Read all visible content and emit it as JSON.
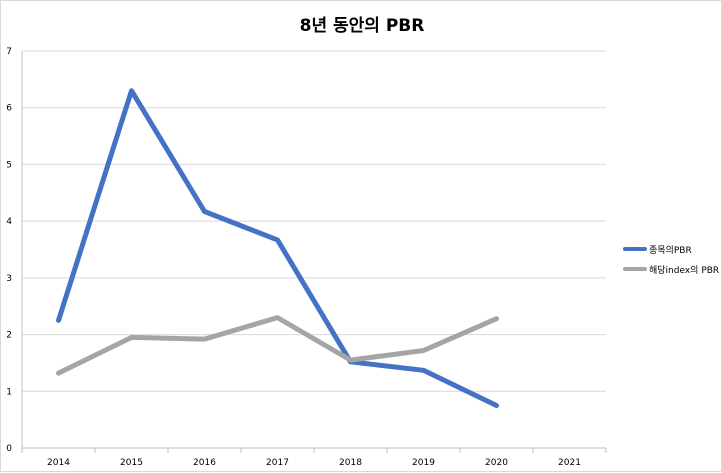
{
  "chart_data": {
    "type": "line",
    "title": "8년 동안의 PBR",
    "categories": [
      "2014",
      "2015",
      "2016",
      "2017",
      "2018",
      "2019",
      "2020",
      "2021"
    ],
    "ylim": [
      0,
      7
    ],
    "yticks": [
      0,
      1,
      2,
      3,
      4,
      5,
      6,
      7
    ],
    "grid": true,
    "legend_position": "right",
    "series": [
      {
        "name": "종목의PBR",
        "color": "#4472C4",
        "values": [
          2.25,
          6.3,
          4.17,
          3.67,
          1.52,
          1.37,
          0.75,
          null
        ]
      },
      {
        "name": "해당index의 PBR",
        "color": "#A5A5A5",
        "values": [
          1.32,
          1.95,
          1.92,
          2.3,
          1.55,
          1.72,
          2.28,
          null
        ]
      }
    ]
  }
}
